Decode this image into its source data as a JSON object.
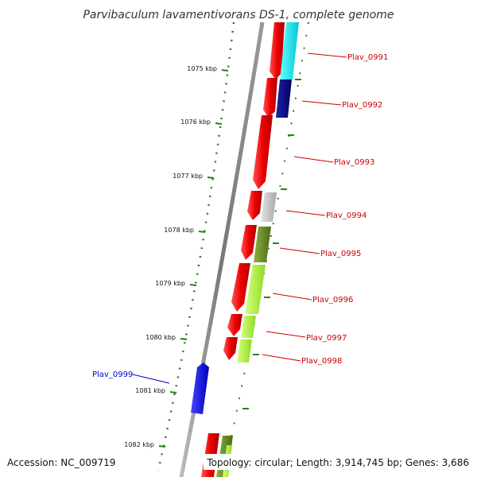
{
  "title": "Parvibaculum lavamentivorans DS-1, complete genome",
  "footer": {
    "accession": "Accession: NC_009719",
    "summary": "Topology: circular; Length: 3,914,745 bp; Genes: 3,686"
  },
  "colors": {
    "backbone": "#888888",
    "tick": "#2e7d1e",
    "forward_label": "#cc0000",
    "reverse_label": "#0000cc"
  },
  "scale_ticks": [
    "1075 kbp",
    "1076 kbp",
    "1077 kbp",
    "1078 kbp",
    "1079 kbp",
    "1080 kbp",
    "1081 kbp",
    "1082 kbp"
  ],
  "gene_labels": {
    "g0991": "Plav_0991",
    "g0992": "Plav_0992",
    "g0993": "Plav_0993",
    "g0994": "Plav_0994",
    "g0995": "Plav_0995",
    "g0996": "Plav_0996",
    "g0997": "Plav_0997",
    "g0998": "Plav_0998",
    "g0999": "Plav_0999"
  },
  "cog_colors": {
    "cds": "#ee0000",
    "cyan": "#00e5ee",
    "navy": "#000080",
    "grey": "#c0c0c0",
    "olive": "#6b8e23",
    "lime": "#adff2f",
    "blue": "#0000ff"
  }
}
